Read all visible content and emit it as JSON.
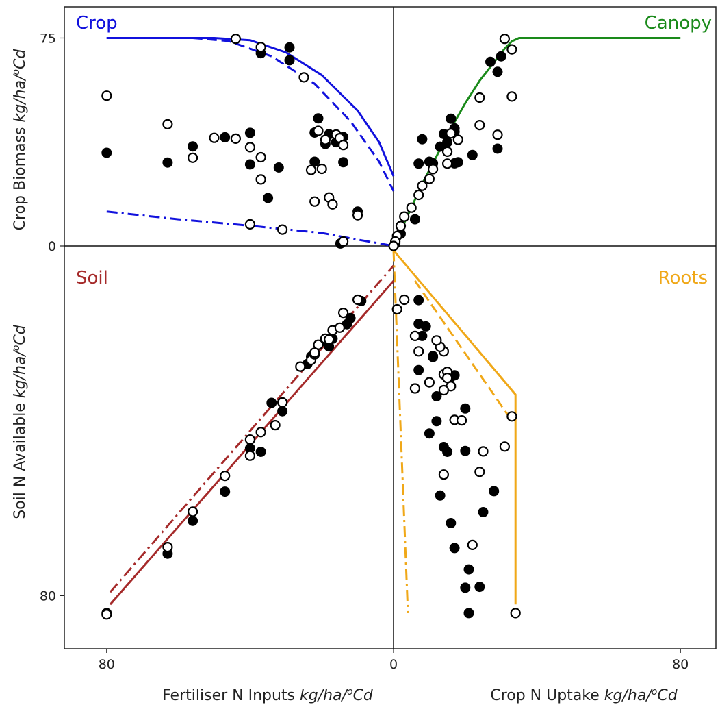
{
  "chart_data": {
    "type": "scatter",
    "description_units": "kg/ha/oCd",
    "x_axis": {
      "left_label": {
        "text": "Fertiliser N Inputs ",
        "unit": "kg/ha/",
        "sup": "o",
        "unit2": "Cd"
      },
      "right_label": {
        "text": "Crop N Uptake ",
        "unit": "kg/ha/",
        "sup": "o",
        "unit2": "Cd"
      },
      "range": [
        -80,
        80
      ],
      "ticks": [
        {
          "value": -80,
          "label": "80"
        },
        {
          "value": 0,
          "label": "0"
        },
        {
          "value": 80,
          "label": "80"
        }
      ]
    },
    "y_axis": {
      "top_label": {
        "text": "Crop Biomass ",
        "unit": "kg/ha/",
        "sup": "o",
        "unit2": "Cd"
      },
      "bottom_label": {
        "text": "Soil N Available ",
        "unit": "kg/ha/",
        "sup": "o",
        "unit2": "Cd"
      },
      "top_range": [
        0,
        75
      ],
      "bottom_range": [
        0,
        80
      ],
      "top_ticks": [
        {
          "value": 75,
          "label": "75"
        },
        {
          "value": 0,
          "label": "0"
        }
      ],
      "bottom_ticks": [
        {
          "value": 0,
          "label": "0"
        },
        {
          "value": 80,
          "label": "80"
        }
      ]
    },
    "grid": false,
    "quadrants": [
      {
        "name": "Crop",
        "position": "top-left",
        "color": "#1111dd"
      },
      {
        "name": "Canopy",
        "position": "top-right",
        "color": "#1a8a1a"
      },
      {
        "name": "Soil",
        "position": "bottom-left",
        "color": "#a52a2a"
      },
      {
        "name": "Roots",
        "position": "bottom-right",
        "color": "#f0a818"
      }
    ],
    "lines": [
      {
        "quadrant": "Crop",
        "style": "solid",
        "color": "#1111dd",
        "points": [
          [
            -80,
            75
          ],
          [
            -50,
            75
          ],
          [
            -40,
            74.2
          ],
          [
            -30,
            69.8
          ],
          [
            -20,
            61.6
          ],
          [
            -10,
            48.8
          ],
          [
            -4,
            37.4
          ],
          [
            0,
            25.2
          ]
        ]
      },
      {
        "quadrant": "Crop",
        "style": "dashed",
        "color": "#1111dd",
        "points": [
          [
            -80,
            75
          ],
          [
            -56,
            75
          ],
          [
            -46,
            73.9
          ],
          [
            -34,
            68.4
          ],
          [
            -22,
            58.5
          ],
          [
            -12,
            45
          ],
          [
            -4,
            30.4
          ],
          [
            0,
            19.8
          ]
        ]
      },
      {
        "quadrant": "Crop",
        "style": "dashdot",
        "color": "#1111dd",
        "points": [
          [
            -80,
            12.4
          ],
          [
            -60,
            9.6
          ],
          [
            -40,
            7.3
          ],
          [
            -20,
            4.7
          ],
          [
            -10,
            2.3
          ],
          [
            0,
            0
          ]
        ]
      },
      {
        "quadrant": "Canopy",
        "style": "solid",
        "color": "#1a8a1a",
        "points": [
          [
            0,
            0
          ],
          [
            4,
            11.1
          ],
          [
            8,
            22.4
          ],
          [
            12,
            32.4
          ],
          [
            16,
            42.4
          ],
          [
            20,
            51.5
          ],
          [
            24,
            59.6
          ],
          [
            28,
            66.2
          ],
          [
            31,
            71.2
          ],
          [
            33,
            73.8
          ],
          [
            35,
            75
          ],
          [
            80,
            75
          ]
        ]
      },
      {
        "quadrant": "Soil",
        "style": "solid",
        "color": "#a52a2a",
        "points": [
          [
            -79,
            82
          ],
          [
            0,
            8
          ]
        ]
      },
      {
        "quadrant": "Soil",
        "style": "dashdot",
        "color": "#a52a2a",
        "points": [
          [
            -79,
            79.2
          ],
          [
            0,
            4.5
          ]
        ]
      },
      {
        "quadrant": "Roots",
        "style": "solid",
        "color": "#f0a818",
        "points": [
          [
            0,
            1
          ],
          [
            34,
            34
          ],
          [
            34,
            82
          ]
        ]
      },
      {
        "quadrant": "Roots",
        "style": "dashed",
        "color": "#f0a818",
        "points": [
          [
            6,
            8
          ],
          [
            33,
            40
          ]
        ]
      },
      {
        "quadrant": "Roots",
        "style": "dashdot",
        "color": "#f0a818",
        "points": [
          [
            0,
            1
          ],
          [
            4,
            84
          ]
        ]
      }
    ],
    "points_filled": [
      [
        -80,
        33.6
      ],
      [
        -63,
        30.1
      ],
      [
        -56,
        35.9
      ],
      [
        -47,
        39.2
      ],
      [
        -40,
        40.8
      ],
      [
        -40,
        29.4
      ],
      [
        -37,
        69.5
      ],
      [
        -35,
        17.3
      ],
      [
        -32,
        28.3
      ],
      [
        -29,
        71.6
      ],
      [
        -29,
        67
      ],
      [
        -22,
        40.9
      ],
      [
        -22,
        30.4
      ],
      [
        -21,
        46
      ],
      [
        -19,
        36.8
      ],
      [
        -18,
        40.3
      ],
      [
        -16,
        37.4
      ],
      [
        -14,
        39.3
      ],
      [
        -14,
        30.2
      ],
      [
        -10,
        12.4
      ],
      [
        -14.8,
        0.9
      ],
      [
        22,
        32.8
      ],
      [
        29,
        62.8
      ],
      [
        29,
        35.1
      ],
      [
        27,
        66.4
      ],
      [
        30,
        68.4
      ],
      [
        17,
        42.4
      ],
      [
        17,
        41.2
      ],
      [
        16,
        45.9
      ],
      [
        15,
        37.4
      ],
      [
        14,
        40.4
      ],
      [
        13,
        35.8
      ],
      [
        11,
        29.8
      ],
      [
        10,
        30.4
      ],
      [
        8,
        38.5
      ],
      [
        7,
        29.7
      ],
      [
        17,
        29.8
      ],
      [
        18,
        30.2
      ],
      [
        6,
        9.6
      ],
      [
        2,
        4.4
      ],
      [
        0.5,
        0.8
      ],
      [
        -80,
        84
      ],
      [
        -63,
        70.4
      ],
      [
        -56,
        62.9
      ],
      [
        -47,
        56.2
      ],
      [
        -40,
        46.3
      ],
      [
        -37,
        47.1
      ],
      [
        -34,
        35.9
      ],
      [
        -31,
        37.8
      ],
      [
        -24,
        27
      ],
      [
        -23,
        25.3
      ],
      [
        -19,
        21.8
      ],
      [
        -18,
        23
      ],
      [
        -17,
        21.2
      ],
      [
        -13,
        17.9
      ],
      [
        -12,
        16.5
      ],
      [
        -9,
        12.6
      ],
      [
        21,
        84
      ],
      [
        28,
        56.1
      ],
      [
        25,
        60.9
      ],
      [
        24,
        78
      ],
      [
        17,
        69.1
      ],
      [
        16,
        63.4
      ],
      [
        15,
        47.1
      ],
      [
        14,
        46
      ],
      [
        13,
        57.1
      ],
      [
        12,
        40.1
      ],
      [
        12,
        34.4
      ],
      [
        11,
        25.2
      ],
      [
        17,
        29.6
      ],
      [
        11,
        25.4
      ],
      [
        7,
        17.8
      ],
      [
        16,
        30
      ],
      [
        20,
        46.9
      ],
      [
        20,
        37.2
      ],
      [
        7,
        28.4
      ],
      [
        10,
        42.9
      ],
      [
        9,
        18.4
      ],
      [
        7,
        12.4
      ],
      [
        8,
        20.6
      ],
      [
        20,
        78.2
      ],
      [
        21,
        74
      ]
    ],
    "points_open": [
      [
        -80,
        54.2
      ],
      [
        -63,
        43.9
      ],
      [
        -56,
        31.8
      ],
      [
        -50,
        39
      ],
      [
        -44,
        74.7
      ],
      [
        -37,
        71.7
      ],
      [
        -40,
        7.8
      ],
      [
        -40,
        35.6
      ],
      [
        -37,
        32
      ],
      [
        -37,
        24
      ],
      [
        -31,
        5.9
      ],
      [
        -25,
        60.8
      ],
      [
        -23,
        27.4
      ],
      [
        -22,
        16
      ],
      [
        -21,
        41.5
      ],
      [
        -20,
        27.8
      ],
      [
        -19,
        38.3
      ],
      [
        -18,
        17.5
      ],
      [
        -17,
        15
      ],
      [
        -16,
        40.2
      ],
      [
        -15,
        38.9
      ],
      [
        -14,
        36.4
      ],
      [
        -14,
        1.6
      ],
      [
        -10,
        11.1
      ],
      [
        -44,
        38.7
      ],
      [
        31,
        74.7
      ],
      [
        33,
        70.9
      ],
      [
        33,
        53.9
      ],
      [
        29,
        40.1
      ],
      [
        24,
        43.6
      ],
      [
        24,
        53.5
      ],
      [
        18,
        38.3
      ],
      [
        16,
        40.6
      ],
      [
        15,
        29.7
      ],
      [
        15,
        34
      ],
      [
        11,
        27.7
      ],
      [
        10,
        24.2
      ],
      [
        8,
        21.7
      ],
      [
        7,
        18.4
      ],
      [
        5,
        13.8
      ],
      [
        3,
        10.6
      ],
      [
        2,
        7.2
      ],
      [
        1,
        3.6
      ],
      [
        0.5,
        1.6
      ],
      [
        0,
        0
      ],
      [
        -80,
        84.3
      ],
      [
        -63,
        68.9
      ],
      [
        -56,
        60.8
      ],
      [
        -47,
        52.6
      ],
      [
        -40,
        48
      ],
      [
        -40,
        44.3
      ],
      [
        -37,
        42.6
      ],
      [
        -33,
        41
      ],
      [
        -31,
        35.8
      ],
      [
        -26,
        27.6
      ],
      [
        -23,
        26.1
      ],
      [
        -22,
        24.8
      ],
      [
        -21,
        22.6
      ],
      [
        -19,
        21.2
      ],
      [
        -18,
        21.4
      ],
      [
        -17,
        19.3
      ],
      [
        -15,
        18.7
      ],
      [
        -14,
        15.3
      ],
      [
        -10,
        12.3
      ],
      [
        -22,
        24.4
      ],
      [
        1,
        14.5
      ],
      [
        3,
        12.3
      ],
      [
        6,
        20.6
      ],
      [
        7,
        24.1
      ],
      [
        10,
        31.2
      ],
      [
        6,
        32.6
      ],
      [
        14,
        29.4
      ],
      [
        15,
        28.8
      ],
      [
        14,
        24.1
      ],
      [
        16,
        32.1
      ],
      [
        17,
        39.8
      ],
      [
        19,
        39.9
      ],
      [
        14,
        52.3
      ],
      [
        15,
        30.2
      ],
      [
        22,
        68.4
      ],
      [
        24,
        51.7
      ],
      [
        25,
        47
      ],
      [
        33,
        39
      ],
      [
        34,
        84
      ],
      [
        31,
        45.9
      ],
      [
        13,
        23.1
      ],
      [
        12,
        21.6
      ],
      [
        14,
        33
      ]
    ]
  }
}
